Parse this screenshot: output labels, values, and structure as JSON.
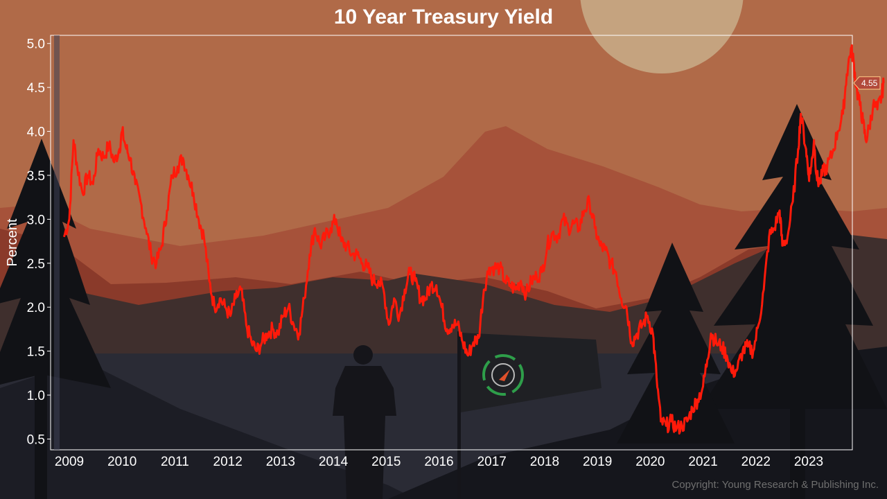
{
  "chart_data": {
    "type": "line",
    "title": "10 Year Treasury Yield",
    "ylabel": "Percent",
    "xlabel": "",
    "ylim": [
      0.4,
      5.1
    ],
    "xlim": [
      2008.85,
      2023.85
    ],
    "yticks": [
      "5.0",
      "4.5",
      "4.0",
      "3.5",
      "3.0",
      "2.5",
      "2.0",
      "1.5",
      "1.0",
      "0.5"
    ],
    "xticks": [
      "2009",
      "2010",
      "2011",
      "2012",
      "2013",
      "2014",
      "2015",
      "2016",
      "2017",
      "2018",
      "2019",
      "2020",
      "2021",
      "2022",
      "2023"
    ],
    "last_value_label": "4.55",
    "line_color": "#ff1a0a",
    "series": [
      {
        "values": [
          [
            2008.9,
            2.8
          ],
          [
            2009.0,
            3.0
          ],
          [
            2009.08,
            3.9
          ],
          [
            2009.15,
            3.6
          ],
          [
            2009.25,
            3.3
          ],
          [
            2009.35,
            3.5
          ],
          [
            2009.45,
            3.4
          ],
          [
            2009.55,
            3.8
          ],
          [
            2009.65,
            3.7
          ],
          [
            2009.75,
            3.85
          ],
          [
            2009.85,
            3.65
          ],
          [
            2009.95,
            3.8
          ],
          [
            2010.0,
            4.0
          ],
          [
            2010.08,
            3.8
          ],
          [
            2010.15,
            3.7
          ],
          [
            2010.25,
            3.4
          ],
          [
            2010.35,
            3.2
          ],
          [
            2010.45,
            2.9
          ],
          [
            2010.55,
            2.6
          ],
          [
            2010.65,
            2.5
          ],
          [
            2010.75,
            2.7
          ],
          [
            2010.85,
            3.1
          ],
          [
            2010.95,
            3.5
          ],
          [
            2011.05,
            3.6
          ],
          [
            2011.15,
            3.7
          ],
          [
            2011.25,
            3.5
          ],
          [
            2011.35,
            3.3
          ],
          [
            2011.45,
            3.0
          ],
          [
            2011.55,
            2.8
          ],
          [
            2011.65,
            2.3
          ],
          [
            2011.75,
            2.0
          ],
          [
            2011.85,
            2.1
          ],
          [
            2011.95,
            2.0
          ],
          [
            2012.05,
            1.9
          ],
          [
            2012.15,
            2.1
          ],
          [
            2012.25,
            2.2
          ],
          [
            2012.35,
            1.8
          ],
          [
            2012.45,
            1.6
          ],
          [
            2012.55,
            1.5
          ],
          [
            2012.65,
            1.6
          ],
          [
            2012.75,
            1.7
          ],
          [
            2012.85,
            1.75
          ],
          [
            2012.95,
            1.7
          ],
          [
            2013.05,
            1.9
          ],
          [
            2013.15,
            2.0
          ],
          [
            2013.25,
            1.8
          ],
          [
            2013.35,
            1.7
          ],
          [
            2013.45,
            2.1
          ],
          [
            2013.55,
            2.6
          ],
          [
            2013.65,
            2.9
          ],
          [
            2013.75,
            2.7
          ],
          [
            2013.85,
            2.8
          ],
          [
            2013.95,
            2.9
          ],
          [
            2014.05,
            3.0
          ],
          [
            2014.15,
            2.75
          ],
          [
            2014.25,
            2.7
          ],
          [
            2014.35,
            2.6
          ],
          [
            2014.45,
            2.6
          ],
          [
            2014.55,
            2.5
          ],
          [
            2014.65,
            2.45
          ],
          [
            2014.75,
            2.3
          ],
          [
            2014.85,
            2.3
          ],
          [
            2014.95,
            2.2
          ],
          [
            2015.05,
            1.8
          ],
          [
            2015.15,
            2.1
          ],
          [
            2015.25,
            1.9
          ],
          [
            2015.35,
            2.2
          ],
          [
            2015.45,
            2.4
          ],
          [
            2015.55,
            2.3
          ],
          [
            2015.65,
            2.1
          ],
          [
            2015.75,
            2.1
          ],
          [
            2015.85,
            2.25
          ],
          [
            2015.95,
            2.25
          ],
          [
            2016.05,
            2.0
          ],
          [
            2016.15,
            1.75
          ],
          [
            2016.25,
            1.8
          ],
          [
            2016.35,
            1.8
          ],
          [
            2016.45,
            1.6
          ],
          [
            2016.55,
            1.45
          ],
          [
            2016.65,
            1.6
          ],
          [
            2016.75,
            1.65
          ],
          [
            2016.85,
            2.2
          ],
          [
            2016.95,
            2.45
          ],
          [
            2017.05,
            2.45
          ],
          [
            2017.15,
            2.45
          ],
          [
            2017.25,
            2.3
          ],
          [
            2017.35,
            2.25
          ],
          [
            2017.45,
            2.2
          ],
          [
            2017.55,
            2.3
          ],
          [
            2017.65,
            2.15
          ],
          [
            2017.75,
            2.3
          ],
          [
            2017.85,
            2.35
          ],
          [
            2017.95,
            2.4
          ],
          [
            2018.05,
            2.7
          ],
          [
            2018.15,
            2.85
          ],
          [
            2018.25,
            2.8
          ],
          [
            2018.35,
            3.0
          ],
          [
            2018.45,
            2.9
          ],
          [
            2018.55,
            2.95
          ],
          [
            2018.65,
            2.9
          ],
          [
            2018.75,
            3.1
          ],
          [
            2018.85,
            3.2
          ],
          [
            2018.95,
            2.9
          ],
          [
            2019.05,
            2.7
          ],
          [
            2019.15,
            2.65
          ],
          [
            2019.25,
            2.5
          ],
          [
            2019.35,
            2.4
          ],
          [
            2019.45,
            2.1
          ],
          [
            2019.55,
            2.0
          ],
          [
            2019.65,
            1.6
          ],
          [
            2019.75,
            1.7
          ],
          [
            2019.85,
            1.8
          ],
          [
            2019.95,
            1.9
          ],
          [
            2020.05,
            1.7
          ],
          [
            2020.12,
            1.2
          ],
          [
            2020.2,
            0.7
          ],
          [
            2020.3,
            0.65
          ],
          [
            2020.4,
            0.7
          ],
          [
            2020.5,
            0.62
          ],
          [
            2020.6,
            0.65
          ],
          [
            2020.7,
            0.7
          ],
          [
            2020.8,
            0.85
          ],
          [
            2020.9,
            0.95
          ],
          [
            2021.0,
            1.1
          ],
          [
            2021.08,
            1.4
          ],
          [
            2021.15,
            1.7
          ],
          [
            2021.25,
            1.6
          ],
          [
            2021.35,
            1.55
          ],
          [
            2021.45,
            1.45
          ],
          [
            2021.55,
            1.25
          ],
          [
            2021.65,
            1.3
          ],
          [
            2021.75,
            1.5
          ],
          [
            2021.85,
            1.55
          ],
          [
            2021.95,
            1.5
          ],
          [
            2022.05,
            1.8
          ],
          [
            2022.15,
            2.2
          ],
          [
            2022.25,
            2.8
          ],
          [
            2022.35,
            2.9
          ],
          [
            2022.45,
            3.1
          ],
          [
            2022.5,
            2.7
          ],
          [
            2022.6,
            2.8
          ],
          [
            2022.7,
            3.2
          ],
          [
            2022.8,
            3.8
          ],
          [
            2022.85,
            4.2
          ],
          [
            2022.95,
            3.8
          ],
          [
            2023.0,
            3.5
          ],
          [
            2023.05,
            3.6
          ],
          [
            2023.1,
            3.9
          ],
          [
            2023.15,
            3.5
          ],
          [
            2023.2,
            3.4
          ],
          [
            2023.28,
            3.55
          ],
          [
            2023.35,
            3.6
          ],
          [
            2023.45,
            3.75
          ],
          [
            2023.55,
            4.0
          ],
          [
            2023.65,
            4.2
          ],
          [
            2023.72,
            4.65
          ],
          [
            2023.8,
            4.95
          ],
          [
            2023.85,
            4.8
          ],
          [
            2023.9,
            4.5
          ],
          [
            2023.97,
            4.3
          ],
          [
            2024.03,
            4.1
          ],
          [
            2024.08,
            3.9
          ],
          [
            2024.15,
            4.05
          ],
          [
            2024.22,
            4.3
          ],
          [
            2024.3,
            4.25
          ],
          [
            2024.38,
            4.4
          ],
          [
            2024.42,
            4.55
          ]
        ]
      }
    ],
    "grid": false,
    "legend": "none"
  },
  "copyright": "Copyright: Young Research & Publishing Inc."
}
